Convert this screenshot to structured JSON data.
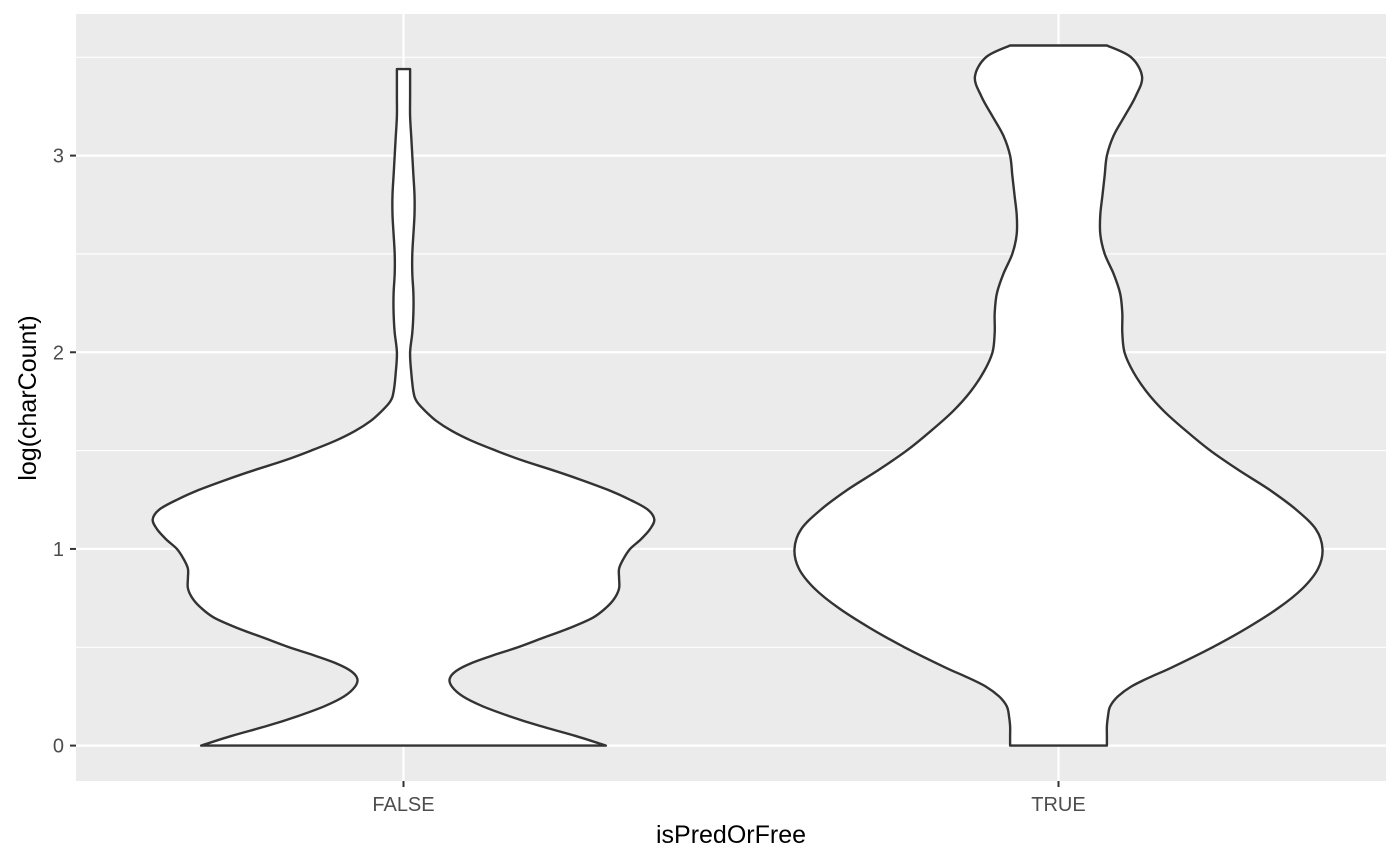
{
  "chart_data": {
    "type": "violin",
    "title": "",
    "xlabel": "isPredOrFree",
    "ylabel": "log(charCount)",
    "categories": [
      "FALSE",
      "TRUE"
    ],
    "y_ticks": [
      0,
      1,
      2,
      3
    ],
    "ylim": [
      -0.18,
      3.72
    ],
    "grid": true,
    "panel_background": "#ebebeb",
    "outline_color": "#333333",
    "fill_color": "#ffffff",
    "violins": [
      {
        "category": "FALSE",
        "y_range": [
          0,
          3.44
        ],
        "profile": [
          [
            0.0,
            0.92
          ],
          [
            0.05,
            0.78
          ],
          [
            0.1,
            0.62
          ],
          [
            0.15,
            0.48
          ],
          [
            0.2,
            0.36
          ],
          [
            0.25,
            0.27
          ],
          [
            0.3,
            0.22
          ],
          [
            0.34,
            0.21
          ],
          [
            0.38,
            0.24
          ],
          [
            0.42,
            0.31
          ],
          [
            0.46,
            0.41
          ],
          [
            0.5,
            0.52
          ],
          [
            0.55,
            0.64
          ],
          [
            0.6,
            0.76
          ],
          [
            0.65,
            0.86
          ],
          [
            0.7,
            0.92
          ],
          [
            0.75,
            0.96
          ],
          [
            0.8,
            0.98
          ],
          [
            0.85,
            0.98
          ],
          [
            0.9,
            0.98
          ],
          [
            0.95,
            1.0
          ],
          [
            1.0,
            1.03
          ],
          [
            1.05,
            1.08
          ],
          [
            1.1,
            1.12
          ],
          [
            1.15,
            1.14
          ],
          [
            1.2,
            1.11
          ],
          [
            1.25,
            1.03
          ],
          [
            1.3,
            0.93
          ],
          [
            1.35,
            0.81
          ],
          [
            1.4,
            0.68
          ],
          [
            1.45,
            0.54
          ],
          [
            1.5,
            0.42
          ],
          [
            1.55,
            0.31
          ],
          [
            1.6,
            0.22
          ],
          [
            1.65,
            0.15
          ],
          [
            1.7,
            0.1
          ],
          [
            1.75,
            0.06
          ],
          [
            1.8,
            0.045
          ],
          [
            1.9,
            0.035
          ],
          [
            2.0,
            0.03
          ],
          [
            2.1,
            0.04
          ],
          [
            2.2,
            0.045
          ],
          [
            2.3,
            0.045
          ],
          [
            2.4,
            0.04
          ],
          [
            2.5,
            0.04
          ],
          [
            2.6,
            0.045
          ],
          [
            2.7,
            0.05
          ],
          [
            2.8,
            0.05
          ],
          [
            2.9,
            0.045
          ],
          [
            3.0,
            0.04
          ],
          [
            3.1,
            0.035
          ],
          [
            3.2,
            0.03
          ],
          [
            3.3,
            0.03
          ],
          [
            3.44,
            0.03
          ]
        ]
      },
      {
        "category": "TRUE",
        "y_range": [
          0,
          3.56
        ],
        "profile": [
          [
            0.0,
            0.22
          ],
          [
            0.05,
            0.22
          ],
          [
            0.1,
            0.22
          ],
          [
            0.15,
            0.225
          ],
          [
            0.2,
            0.235
          ],
          [
            0.25,
            0.27
          ],
          [
            0.3,
            0.33
          ],
          [
            0.35,
            0.42
          ],
          [
            0.4,
            0.52
          ],
          [
            0.5,
            0.7
          ],
          [
            0.6,
            0.86
          ],
          [
            0.7,
            1.0
          ],
          [
            0.8,
            1.11
          ],
          [
            0.9,
            1.18
          ],
          [
            1.0,
            1.2
          ],
          [
            1.1,
            1.17
          ],
          [
            1.2,
            1.08
          ],
          [
            1.3,
            0.96
          ],
          [
            1.4,
            0.82
          ],
          [
            1.5,
            0.69
          ],
          [
            1.6,
            0.58
          ],
          [
            1.7,
            0.48
          ],
          [
            1.8,
            0.4
          ],
          [
            1.9,
            0.34
          ],
          [
            2.0,
            0.3
          ],
          [
            2.1,
            0.29
          ],
          [
            2.2,
            0.29
          ],
          [
            2.3,
            0.28
          ],
          [
            2.4,
            0.25
          ],
          [
            2.5,
            0.21
          ],
          [
            2.6,
            0.19
          ],
          [
            2.7,
            0.19
          ],
          [
            2.8,
            0.2
          ],
          [
            2.9,
            0.21
          ],
          [
            3.0,
            0.22
          ],
          [
            3.1,
            0.25
          ],
          [
            3.2,
            0.3
          ],
          [
            3.3,
            0.35
          ],
          [
            3.4,
            0.38
          ],
          [
            3.5,
            0.33
          ],
          [
            3.56,
            0.22
          ]
        ]
      }
    ]
  }
}
